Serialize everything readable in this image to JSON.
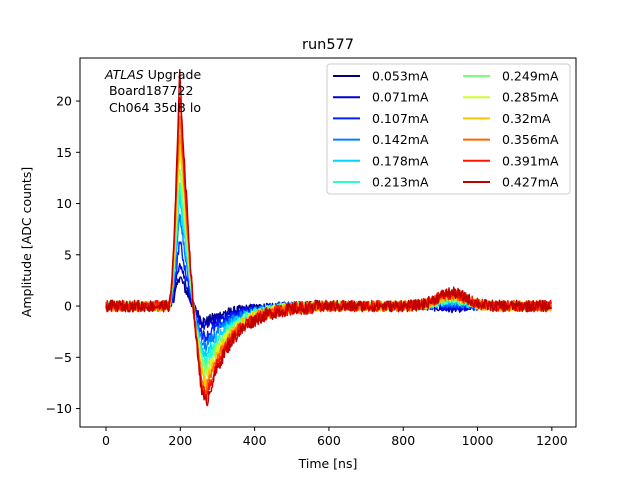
{
  "chart_data": {
    "type": "line",
    "title": "run577",
    "xlabel": "Time [ns]",
    "ylabel": "Amplitude [ADC counts]",
    "xlim": [
      -70,
      1265
    ],
    "ylim": [
      -11.8,
      24.2
    ],
    "xticks": [
      0,
      200,
      400,
      600,
      800,
      1000,
      1200
    ],
    "yticks": [
      -10,
      -5,
      0,
      5,
      10,
      15,
      20
    ],
    "ytick_labels": [
      "−10",
      "−5",
      "0",
      "5",
      "10",
      "15",
      "20"
    ],
    "grid": false,
    "legend_position": "top-right",
    "legend_columns": 2,
    "annotation": {
      "atlas": "ATLAS",
      "line1_rest": " Upgrade",
      "line2": " Board187722",
      "line3": " Ch064 35dB lo"
    },
    "waveform_shape": {
      "baseline_end_ns": 170,
      "peak_time_ns": 198,
      "zero_cross_ns": 235,
      "undershoot_time_ns": 270,
      "recover_time_ns": 560,
      "bump_time_ns": 930,
      "end_ns": 1200
    },
    "series": [
      {
        "name": "0.053mA",
        "color": "#00007f",
        "peak": 3.0,
        "undershoot": -1.5,
        "bump": -0.3
      },
      {
        "name": "0.071mA",
        "color": "#0000d0",
        "peak": 4.5,
        "undershoot": -2.0,
        "bump": -0.2
      },
      {
        "name": "0.107mA",
        "color": "#0020ff",
        "peak": 6.5,
        "undershoot": -3.0,
        "bump": 0.1
      },
      {
        "name": "0.142mA",
        "color": "#0080ff",
        "peak": 9.0,
        "undershoot": -4.0,
        "bump": 0.3
      },
      {
        "name": "0.178mA",
        "color": "#00d4ff",
        "peak": 11.0,
        "undershoot": -4.8,
        "bump": 0.5
      },
      {
        "name": "0.213mA",
        "color": "#29ffce",
        "peak": 12.5,
        "undershoot": -5.5,
        "bump": 0.6
      },
      {
        "name": "0.249mA",
        "color": "#7dff7a",
        "peak": 14.0,
        "undershoot": -6.2,
        "bump": 0.8
      },
      {
        "name": "0.285mA",
        "color": "#ceff29",
        "peak": 15.5,
        "undershoot": -6.8,
        "bump": 0.9
      },
      {
        "name": "0.32mA",
        "color": "#ffc400",
        "peak": 17.0,
        "undershoot": -7.5,
        "bump": 1.0
      },
      {
        "name": "0.356mA",
        "color": "#ff6800",
        "peak": 19.0,
        "undershoot": -8.2,
        "bump": 1.1
      },
      {
        "name": "0.391mA",
        "color": "#ff1300",
        "peak": 21.0,
        "undershoot": -8.8,
        "bump": 1.2
      },
      {
        "name": "0.427mA",
        "color": "#c00000",
        "peak": 22.8,
        "undershoot": -9.5,
        "bump": 1.3
      }
    ]
  }
}
